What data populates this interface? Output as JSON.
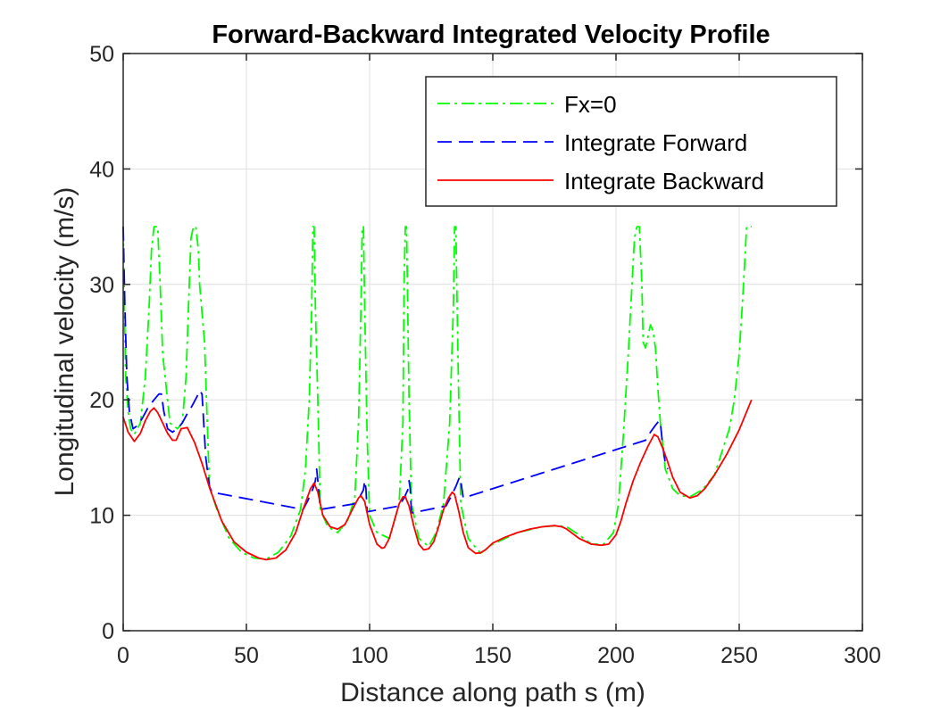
{
  "chart_data": {
    "type": "line",
    "title": "Forward-Backward Integrated Velocity Profile",
    "xlabel": "Distance along path s (m)",
    "ylabel": "Longitudinal velocity (m/s)",
    "xlim": [
      0,
      300
    ],
    "ylim": [
      0,
      50
    ],
    "xticks": [
      0,
      50,
      100,
      150,
      200,
      250,
      300
    ],
    "yticks": [
      0,
      10,
      20,
      30,
      40,
      50
    ],
    "grid": true,
    "legend_position": "top-right",
    "series": [
      {
        "name": "Fx=0",
        "color": "#00ff00",
        "style": "dash-dot",
        "x": [
          0,
          0.5,
          1,
          2,
          3,
          4.5,
          7,
          9,
          10.5,
          11.5,
          12.5,
          13,
          14,
          15,
          16,
          19,
          22,
          24,
          25.5,
          26.5,
          27.5,
          28.5,
          29.5,
          30.5,
          31,
          33,
          35,
          38,
          43,
          48,
          53,
          58,
          63,
          68,
          72,
          74,
          75.5,
          76.5,
          77,
          77.5,
          78,
          79,
          80,
          83,
          87,
          91,
          94,
          95.5,
          96.5,
          97,
          97.5,
          98,
          99,
          100,
          103,
          108,
          110,
          112,
          113.5,
          114,
          114.5,
          115,
          116,
          117,
          120,
          124,
          127,
          130,
          132.5,
          134,
          134.5,
          135,
          136,
          137,
          140,
          145,
          150,
          160,
          170,
          176,
          180,
          185,
          190,
          195,
          199,
          201,
          203,
          205,
          206.5,
          207.5,
          208.5,
          209.5,
          210.5,
          211,
          212,
          213,
          214,
          215,
          216,
          217,
          218,
          219,
          220,
          223,
          226,
          230,
          235,
          240,
          243,
          246,
          248,
          250,
          251.5,
          252.5,
          253,
          254,
          255
        ],
        "values": [
          35,
          28,
          22,
          19,
          17.5,
          17,
          18,
          22,
          28,
          33,
          35,
          35,
          35,
          30,
          24,
          18,
          17.5,
          18,
          22,
          28,
          34,
          35,
          35,
          33,
          30,
          25,
          12.5,
          10.5,
          8,
          6.8,
          6.3,
          6.2,
          6.8,
          8.2,
          10.5,
          14,
          20,
          28,
          35,
          35,
          28,
          20,
          10.5,
          9,
          8.5,
          9.5,
          11.5,
          18,
          28,
          35,
          35,
          28,
          17,
          10,
          8.5,
          8,
          9.5,
          11,
          18,
          30,
          35,
          35,
          20,
          11,
          8,
          7.3,
          8.5,
          11,
          18,
          28,
          35,
          35,
          22,
          11,
          8,
          6.7,
          7.5,
          8.5,
          9,
          9.1,
          9,
          8.3,
          7.5,
          7.5,
          8.5,
          11,
          17,
          24,
          30,
          34,
          35,
          35,
          30,
          25,
          24.5,
          25.5,
          26.5,
          26,
          24.5,
          21,
          18,
          16,
          14,
          12.3,
          11.7,
          11.6,
          12.2,
          13.5,
          15.5,
          17.5,
          20,
          24,
          29,
          33,
          35,
          35,
          35
        ]
      },
      {
        "name": "Integrate Forward",
        "color": "#0000ff",
        "style": "dashed",
        "x": [
          0,
          0.7,
          1.5,
          2.5,
          4,
          6,
          8,
          10,
          12.5,
          14.5,
          15.5,
          16.5,
          18,
          20,
          22,
          24,
          26,
          28,
          30,
          31,
          32,
          33.5,
          35,
          36,
          73,
          75,
          77,
          78,
          78.5,
          79,
          80,
          94,
          96,
          97.5,
          98,
          98.5,
          99,
          112,
          114,
          115.5,
          116,
          116.5,
          117,
          131,
          133,
          135,
          136.5,
          137,
          138,
          212,
          214,
          216,
          217.5,
          218,
          219,
          220,
          221
        ],
        "values": [
          35,
          28,
          22,
          19,
          17.5,
          17.8,
          18.5,
          19.3,
          20,
          20.5,
          20.5,
          19,
          17.5,
          17.2,
          17.5,
          18,
          18.8,
          19.5,
          20.3,
          20.8,
          20.5,
          15,
          12.5,
          12,
          10.5,
          11.3,
          12.3,
          13,
          14,
          13,
          10.5,
          11,
          11.6,
          12.2,
          13,
          12.3,
          10.3,
          10.8,
          11.5,
          12.2,
          13,
          12.3,
          10.2,
          10.8,
          11.6,
          12.5,
          13.3,
          13,
          11.5,
          16.5,
          17.2,
          17.8,
          18.2,
          18,
          16,
          14.5,
          14
        ]
      },
      {
        "name": "Integrate Backward",
        "color": "#ff0000",
        "style": "solid",
        "x": [
          0,
          2,
          4.5,
          7,
          9,
          11,
          12.5,
          14,
          16,
          18,
          20,
          21.5,
          23.5,
          26,
          29,
          32,
          35,
          40,
          45,
          50,
          55,
          58,
          62,
          66,
          70,
          73,
          76,
          77.5,
          79,
          81,
          84,
          87,
          90,
          93,
          95.5,
          96.5,
          98,
          100,
          103,
          105,
          106,
          108,
          110,
          112,
          113.5,
          114.5,
          116,
          118,
          120,
          122,
          124,
          126,
          128,
          130,
          132,
          133.5,
          134.5,
          136,
          138,
          140,
          143,
          145,
          147,
          150,
          155,
          160,
          165,
          170,
          175,
          178,
          180,
          185,
          190,
          194,
          197,
          200,
          202,
          204,
          207,
          210,
          213,
          215.5,
          217,
          219,
          221,
          223,
          226,
          230,
          233,
          236,
          240,
          245,
          250,
          255
        ],
        "values": [
          18.5,
          17.2,
          16.4,
          17.1,
          18.2,
          19.0,
          19.3,
          18.9,
          18.0,
          17.1,
          16.5,
          16.5,
          17.5,
          17.6,
          16.3,
          14.5,
          12.4,
          9.5,
          7.7,
          6.8,
          6.3,
          6.15,
          6.3,
          7.0,
          8.5,
          10.5,
          12.3,
          12.8,
          12.0,
          10.0,
          9.0,
          8.8,
          9.2,
          10.5,
          11.5,
          11.7,
          11.2,
          9.2,
          7.5,
          7.15,
          7.2,
          8.0,
          9.5,
          11.0,
          11.6,
          11.6,
          10.8,
          9.0,
          7.5,
          7.0,
          7.1,
          7.7,
          9.0,
          10.5,
          11.5,
          12.0,
          11.8,
          10.5,
          8.5,
          7.2,
          6.7,
          6.75,
          7.0,
          7.6,
          8.1,
          8.5,
          8.8,
          9.0,
          9.1,
          9.0,
          8.8,
          8.0,
          7.5,
          7.4,
          7.5,
          8.3,
          9.5,
          11.0,
          13.0,
          14.6,
          16.0,
          17.0,
          16.8,
          15.8,
          14.6,
          13.3,
          12.0,
          11.5,
          11.7,
          12.3,
          13.5,
          15.3,
          17.4,
          20.0
        ]
      }
    ]
  }
}
